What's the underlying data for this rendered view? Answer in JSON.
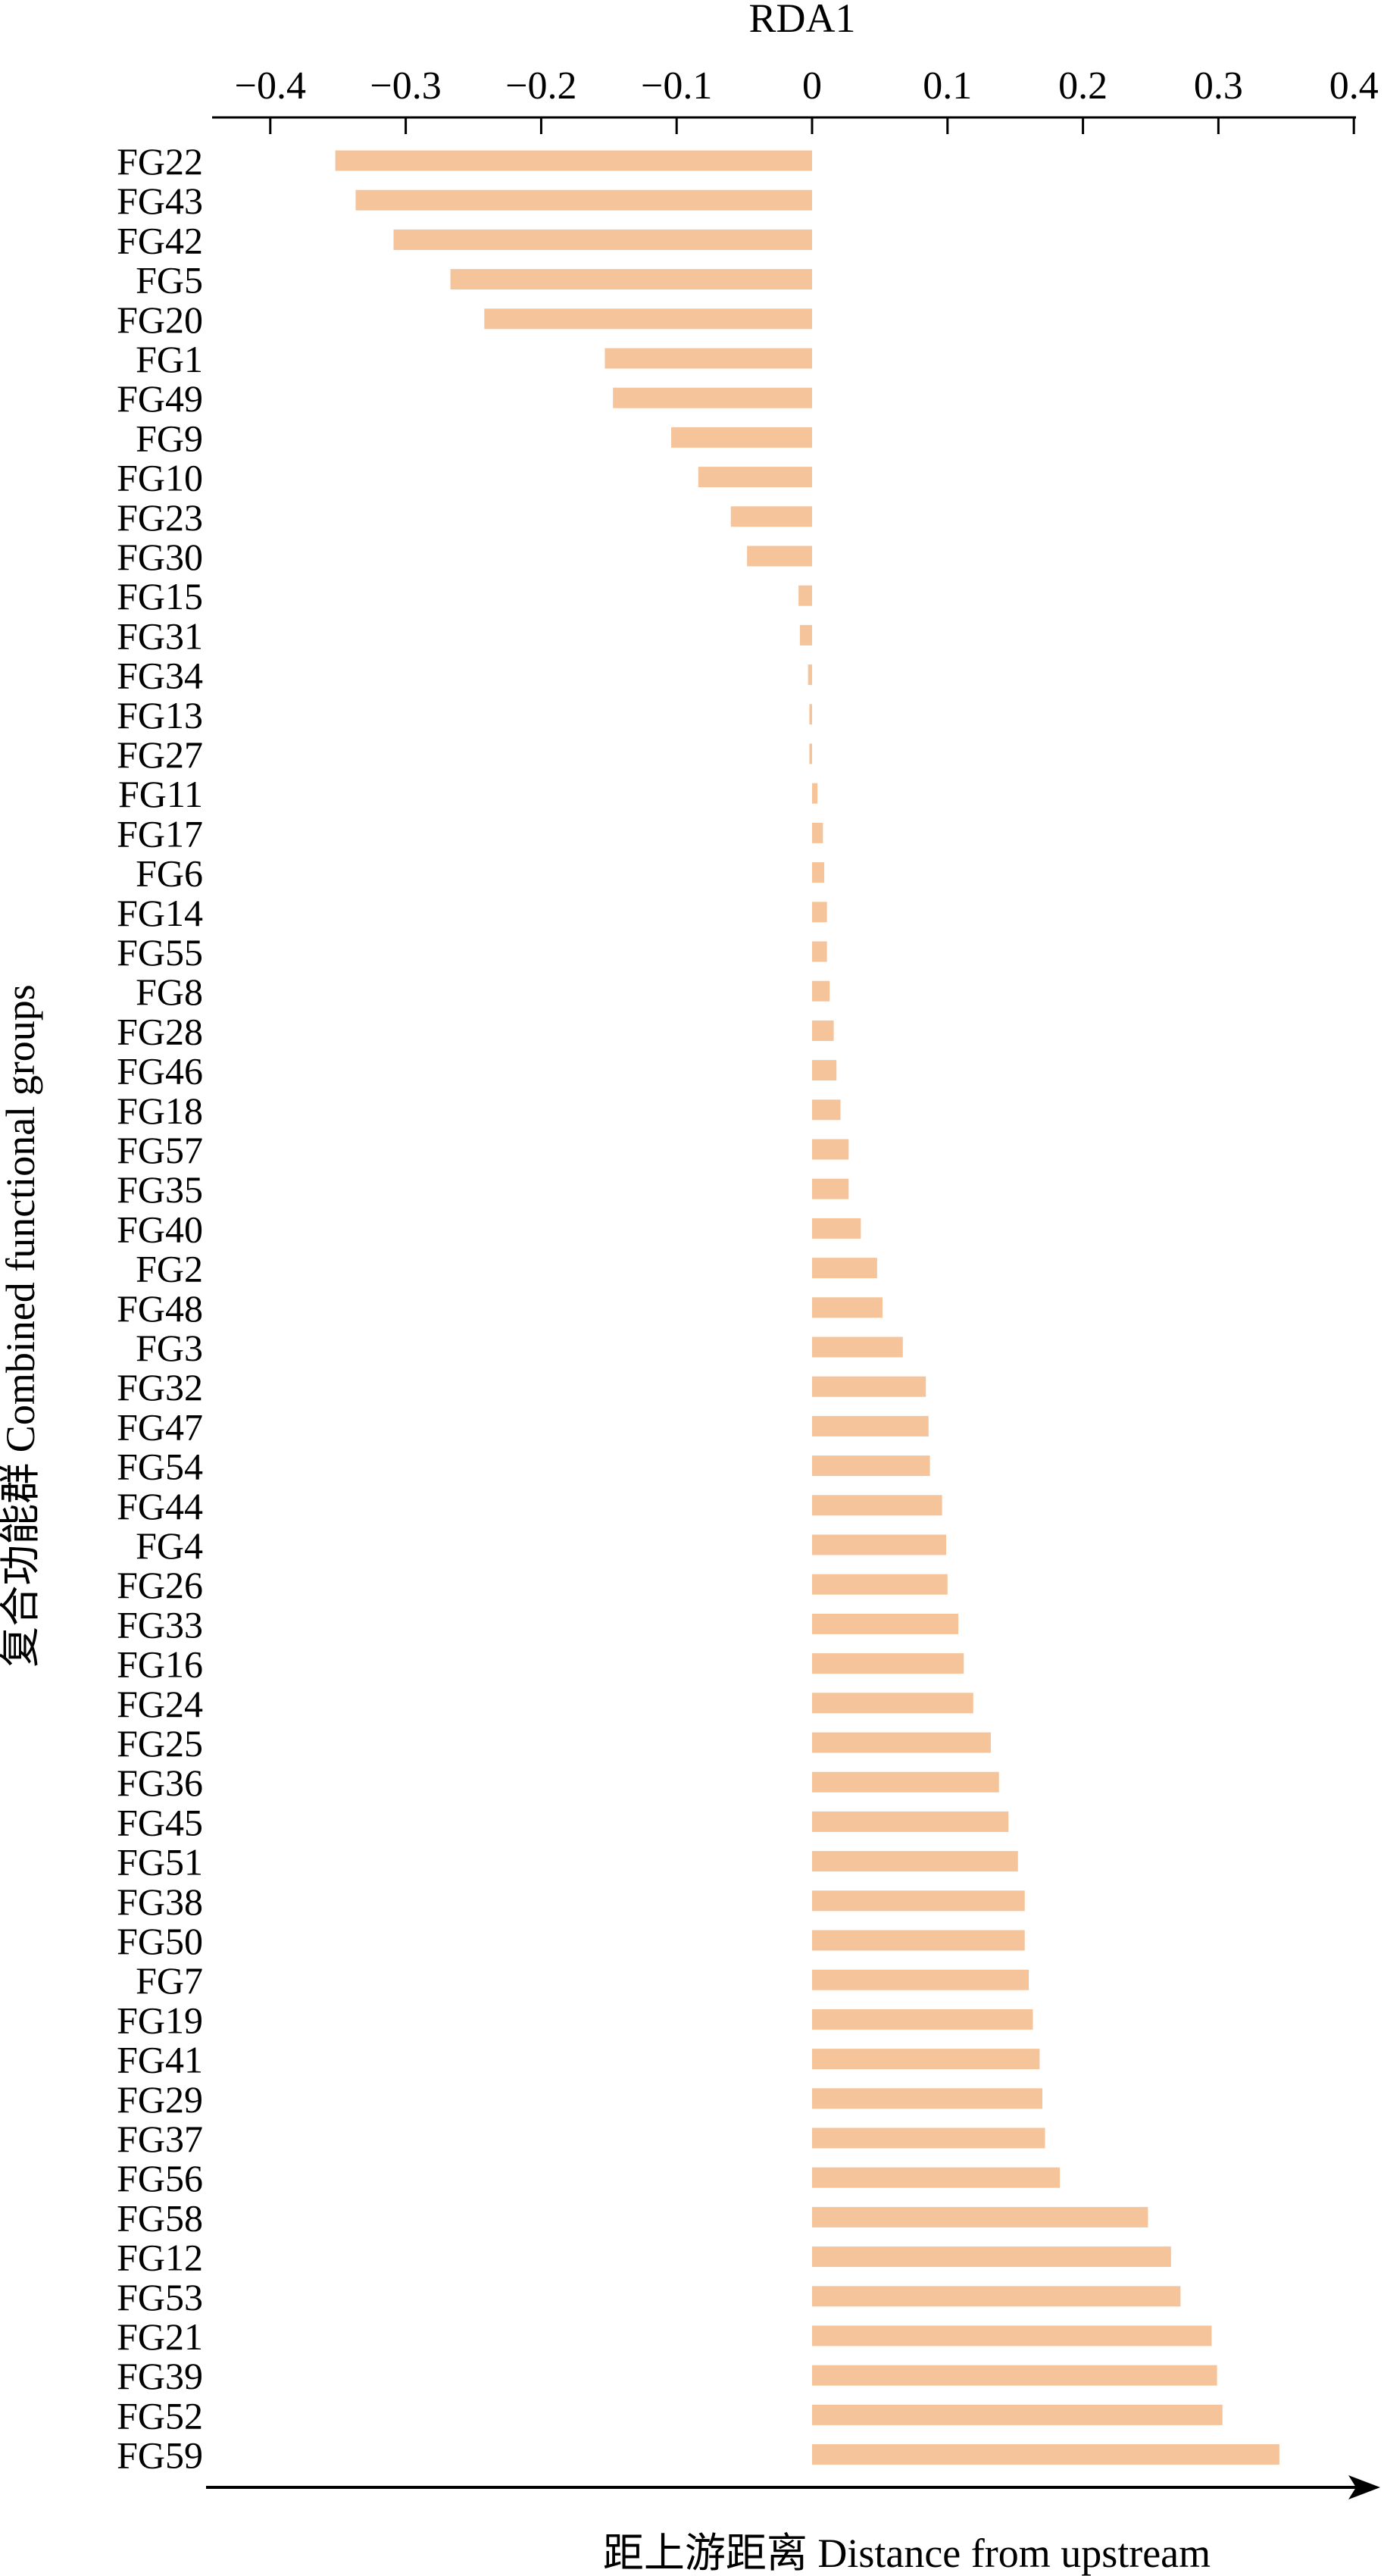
{
  "chart_data": {
    "type": "bar",
    "orientation": "horizontal",
    "xlabel": "RDA1",
    "ylabel": "复合功能群 Combined functional groups",
    "arrow_label": "距上游距离 Distance from upstream",
    "xlim": [
      -0.44,
      0.4
    ],
    "xticks": [
      -0.4,
      -0.3,
      -0.2,
      -0.1,
      0,
      0.1,
      0.2,
      0.3,
      0.4
    ],
    "xtick_labels": [
      "−0.4",
      "−0.3",
      "−0.2",
      "−0.1",
      "0",
      "0.1",
      "0.2",
      "0.3",
      "0.4"
    ],
    "grid": false,
    "legend": "none",
    "bar_color": "#F5C49A",
    "categories": [
      "FG22",
      "FG43",
      "FG42",
      "FG5",
      "FG20",
      "FG1",
      "FG49",
      "FG9",
      "FG10",
      "FG23",
      "FG30",
      "FG15",
      "FG31",
      "FG34",
      "FG13",
      "FG27",
      "FG11",
      "FG17",
      "FG6",
      "FG14",
      "FG55",
      "FG8",
      "FG28",
      "FG46",
      "FG18",
      "FG57",
      "FG35",
      "FG40",
      "FG2",
      "FG48",
      "FG3",
      "FG32",
      "FG47",
      "FG54",
      "FG44",
      "FG4",
      "FG26",
      "FG33",
      "FG16",
      "FG24",
      "FG25",
      "FG36",
      "FG45",
      "FG51",
      "FG38",
      "FG50",
      "FG7",
      "FG19",
      "FG41",
      "FG29",
      "FG37",
      "FG56",
      "FG58",
      "FG12",
      "FG53",
      "FG21",
      "FG39",
      "FG52",
      "FG59"
    ],
    "values": [
      -0.352,
      -0.337,
      -0.309,
      -0.267,
      -0.242,
      -0.153,
      -0.147,
      -0.104,
      -0.084,
      -0.06,
      -0.048,
      -0.01,
      -0.009,
      -0.003,
      -0.002,
      -0.002,
      0.004,
      0.008,
      0.009,
      0.011,
      0.011,
      0.013,
      0.016,
      0.018,
      0.021,
      0.027,
      0.027,
      0.036,
      0.048,
      0.052,
      0.067,
      0.084,
      0.086,
      0.087,
      0.096,
      0.099,
      0.1,
      0.108,
      0.112,
      0.119,
      0.132,
      0.138,
      0.145,
      0.152,
      0.157,
      0.157,
      0.16,
      0.163,
      0.168,
      0.17,
      0.172,
      0.183,
      0.248,
      0.265,
      0.272,
      0.295,
      0.299,
      0.303,
      0.345
    ]
  }
}
